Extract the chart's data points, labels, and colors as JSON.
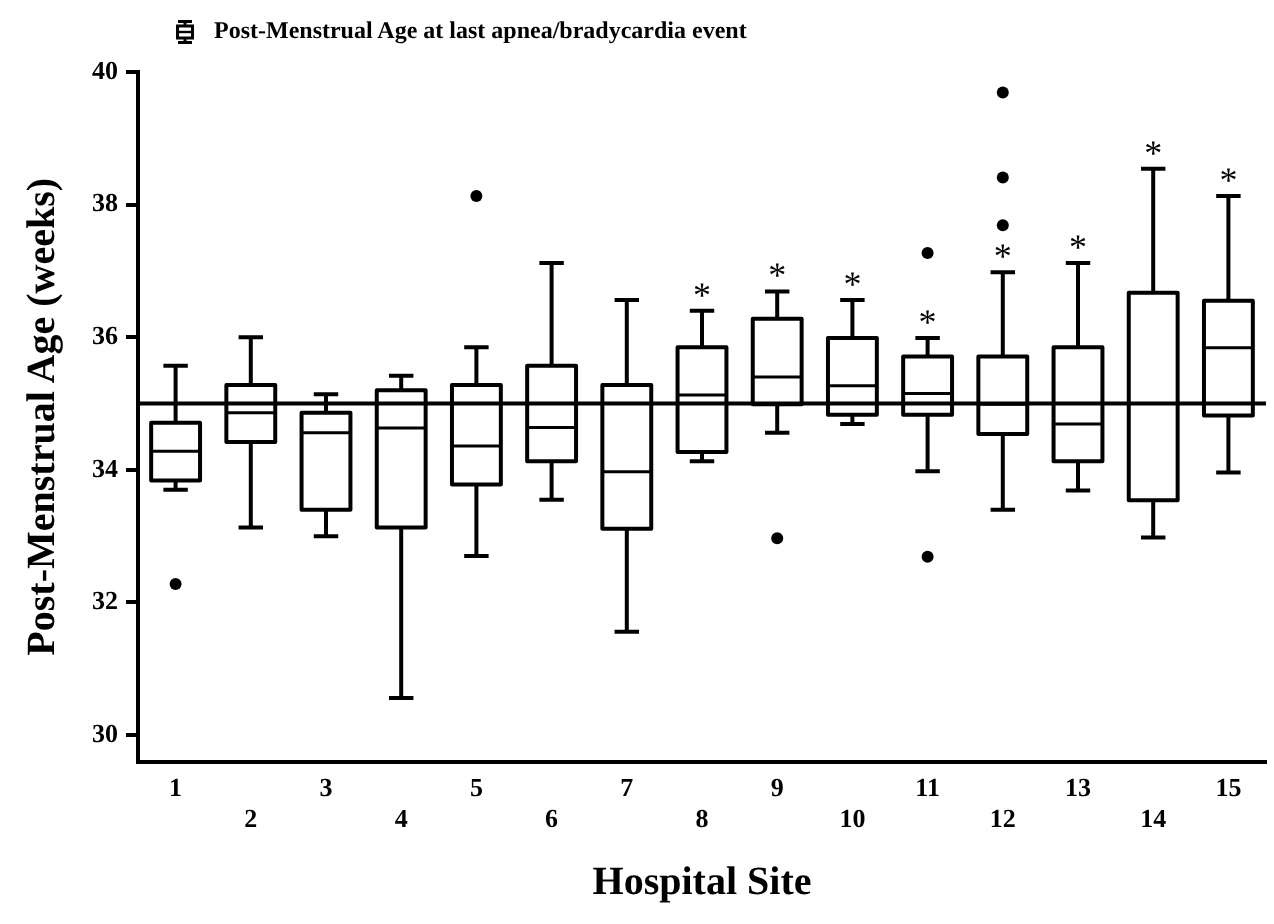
{
  "chart_data": {
    "type": "box",
    "categories": [
      "1",
      "2",
      "3",
      "4",
      "5",
      "6",
      "7",
      "8",
      "9",
      "10",
      "11",
      "12",
      "13",
      "14",
      "15"
    ],
    "series": [
      {
        "name": "Post-Menstrual Age at last apnea/bradycardia event",
        "color": "#000000",
        "boxes": [
          {
            "low": 33.7,
            "q1": 33.84,
            "median": 34.28,
            "q3": 34.71,
            "high": 35.57,
            "outliers": [
              32.28
            ]
          },
          {
            "low": 33.13,
            "q1": 34.42,
            "median": 34.86,
            "q3": 35.28,
            "high": 36.0
          },
          {
            "low": 33.0,
            "q1": 33.4,
            "median": 34.56,
            "q3": 34.86,
            "high": 35.14
          },
          {
            "low": 30.56,
            "q1": 33.13,
            "median": 34.63,
            "q3": 35.2,
            "high": 35.42
          },
          {
            "low": 32.7,
            "q1": 33.78,
            "median": 34.36,
            "q3": 35.28,
            "high": 35.85,
            "outliers": [
              38.13
            ]
          },
          {
            "low": 33.55,
            "q1": 34.13,
            "median": 34.64,
            "q3": 35.57,
            "high": 37.12
          },
          {
            "low": 31.56,
            "q1": 33.11,
            "median": 33.97,
            "q3": 35.28,
            "high": 36.56
          },
          {
            "low": 34.13,
            "q1": 34.27,
            "median": 35.13,
            "q3": 35.85,
            "high": 36.4
          },
          {
            "low": 34.56,
            "q1": 34.99,
            "median": 35.4,
            "q3": 36.28,
            "high": 36.69,
            "outliers": [
              32.97
            ]
          },
          {
            "low": 34.69,
            "q1": 34.83,
            "median": 35.27,
            "q3": 35.99,
            "high": 36.56
          },
          {
            "low": 33.98,
            "q1": 34.83,
            "median": 35.15,
            "q3": 35.71,
            "high": 35.99,
            "outliers": [
              37.27,
              32.69
            ]
          },
          {
            "low": 33.4,
            "q1": 34.54,
            "median": 34.99,
            "q3": 35.71,
            "high": 36.98,
            "outliers": [
              39.69,
              38.41,
              37.69
            ]
          },
          {
            "low": 33.69,
            "q1": 34.13,
            "median": 34.69,
            "q3": 35.85,
            "high": 37.12
          },
          {
            "low": 32.98,
            "q1": 33.54,
            "median": 35.0,
            "q3": 36.67,
            "high": 38.54
          },
          {
            "low": 33.96,
            "q1": 34.82,
            "median": 35.84,
            "q3": 36.55,
            "high": 38.13
          }
        ]
      }
    ],
    "xlabel": "Hospital Site",
    "ylabel": "Post-Menstrual Age (weeks)",
    "ylim": [
      29.6,
      40
    ],
    "yticks": [
      30,
      32,
      34,
      36,
      38,
      40
    ],
    "ref_lines": [
      {
        "axis": "y",
        "value": 35
      }
    ],
    "annotations": [
      {
        "text": "*",
        "x": "8",
        "y": 36.4
      },
      {
        "text": "*",
        "x": "9",
        "y": 36.69
      },
      {
        "text": "*",
        "x": "10",
        "y": 36.56
      },
      {
        "text": "*",
        "x": "11",
        "y": 35.99
      },
      {
        "text": "*",
        "x": "12",
        "y": 36.98
      },
      {
        "text": "*",
        "x": "13",
        "y": 37.12
      },
      {
        "text": "*",
        "x": "14",
        "y": 38.54
      },
      {
        "text": "*",
        "x": "15",
        "y": 38.13
      }
    ],
    "grid": false,
    "legend": "top left"
  }
}
